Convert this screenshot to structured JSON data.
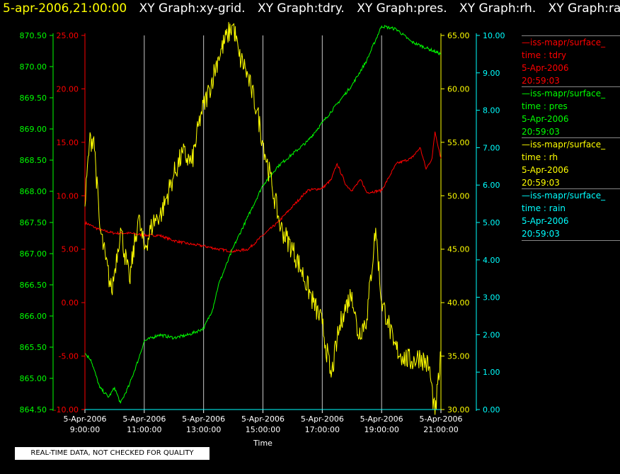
{
  "title": {
    "timestamp": "5-apr-2006,21:00:00",
    "graphs": [
      "XY Graph:xy-grid.",
      "XY Graph:tdry.",
      "XY Graph:pres.",
      "XY Graph:rh.",
      "XY Graph:rain."
    ]
  },
  "colors": {
    "timestamp": "#ffff00",
    "tdry": "#ff0000",
    "pres": "#00ff00",
    "rh": "#ffff00",
    "rain": "#00ffff",
    "grid": "#c8c8c8"
  },
  "legend": [
    {
      "source": "—iss-mapr/surface_",
      "var": "time : tdry",
      "date": "5-Apr-2006",
      "time": "20:59:03",
      "color": "#ff0000"
    },
    {
      "source": "—iss-mapr/surface_",
      "var": "time : pres",
      "date": "5-Apr-2006",
      "time": "20:59:03",
      "color": "#00ff00"
    },
    {
      "source": "—iss-mapr/surface_",
      "var": "time : rh",
      "date": "5-Apr-2006",
      "time": "20:59:03",
      "color": "#ffff00"
    },
    {
      "source": "—iss-mapr/surface_",
      "var": "time : rain",
      "date": "5-Apr-2006",
      "time": "20:59:03",
      "color": "#00ffff"
    }
  ],
  "disclaimer": "REAL-TIME DATA, NOT CHECKED FOR QUALITY",
  "chart_data": {
    "type": "line",
    "xlabel": "Time",
    "x_ticks": [
      {
        "date": "5-Apr-2006",
        "time": "9:00:00",
        "h": 9
      },
      {
        "date": "5-Apr-2006",
        "time": "11:00:00",
        "h": 11
      },
      {
        "date": "5-Apr-2006",
        "time": "13:00:00",
        "h": 13
      },
      {
        "date": "5-Apr-2006",
        "time": "15:00:00",
        "h": 15
      },
      {
        "date": "5-Apr-2006",
        "time": "17:00:00",
        "h": 17
      },
      {
        "date": "5-Apr-2006",
        "time": "19:00:00",
        "h": 19
      },
      {
        "date": "5-Apr-2006",
        "time": "21:00:00",
        "h": 21
      }
    ],
    "xlim": [
      9,
      21
    ],
    "grid": true,
    "axes": {
      "pres": {
        "ylim": [
          864.5,
          870.5
        ],
        "ticks": [
          "864.50",
          "865.00",
          "865.50",
          "866.00",
          "866.50",
          "867.00",
          "867.50",
          "868.00",
          "868.50",
          "869.00",
          "869.50",
          "870.00",
          "870.50"
        ]
      },
      "tdry": {
        "ylim": [
          -10,
          25
        ],
        "ticks": [
          "-10.00",
          "-5.00",
          "0.00",
          "5.00",
          "10.00",
          "15.00",
          "20.00",
          "25.00"
        ]
      },
      "rh": {
        "ylim": [
          30,
          65
        ],
        "ticks": [
          "30.00",
          "35.00",
          "40.00",
          "45.00",
          "50.00",
          "55.00",
          "60.00",
          "65.00"
        ]
      },
      "rain": {
        "ylim": [
          0,
          10
        ],
        "ticks": [
          "0.00",
          "1.00",
          "2.00",
          "3.00",
          "4.00",
          "5.00",
          "6.00",
          "7.00",
          "8.00",
          "9.00",
          "10.00"
        ]
      }
    },
    "series": [
      {
        "name": "time : tdry",
        "axis": "tdry",
        "x": [
          9.0,
          9.5,
          10.0,
          10.5,
          11.0,
          11.5,
          12.0,
          12.5,
          13.0,
          13.5,
          14.0,
          14.5,
          15.0,
          15.5,
          16.0,
          16.5,
          17.0,
          17.3,
          17.5,
          17.8,
          18.0,
          18.3,
          18.5,
          19.0,
          19.3,
          19.5,
          20.0,
          20.3,
          20.5,
          20.7,
          20.8,
          21.0
        ],
        "values": [
          7.5,
          6.8,
          6.5,
          6.5,
          6.3,
          6.3,
          5.8,
          5.5,
          5.3,
          5.0,
          4.8,
          5.0,
          6.3,
          7.5,
          9.0,
          10.5,
          10.7,
          11.5,
          13.0,
          11.0,
          10.5,
          11.5,
          10.3,
          10.5,
          12.0,
          13.0,
          13.5,
          14.5,
          12.5,
          13.5,
          16.0,
          13.5
        ]
      },
      {
        "name": "time : pres",
        "axis": "pres",
        "x": [
          9.0,
          9.2,
          9.5,
          9.8,
          10.0,
          10.2,
          10.5,
          10.8,
          11.0,
          11.5,
          12.0,
          12.5,
          13.0,
          13.3,
          13.5,
          14.0,
          14.5,
          15.0,
          15.5,
          16.0,
          16.5,
          17.0,
          17.5,
          18.0,
          18.5,
          19.0,
          19.5,
          20.0,
          20.5,
          21.0
        ],
        "values": [
          865.4,
          865.3,
          864.85,
          864.7,
          864.85,
          864.6,
          864.9,
          865.3,
          865.6,
          865.7,
          865.65,
          865.7,
          865.8,
          866.1,
          866.5,
          867.1,
          867.6,
          868.1,
          868.4,
          868.6,
          868.8,
          869.1,
          869.4,
          869.7,
          870.1,
          870.65,
          870.6,
          870.4,
          870.3,
          870.2
        ]
      },
      {
        "name": "time : rh",
        "axis": "rh",
        "x": [
          9.0,
          9.15,
          9.3,
          9.5,
          9.7,
          9.9,
          10.2,
          10.5,
          10.8,
          11.0,
          11.3,
          11.6,
          12.0,
          12.3,
          12.6,
          12.9,
          13.2,
          13.5,
          13.8,
          14.0,
          14.2,
          14.4,
          14.6,
          14.8,
          15.0,
          15.3,
          15.6,
          16.0,
          16.3,
          16.7,
          17.0,
          17.3,
          17.5,
          17.7,
          18.0,
          18.2,
          18.5,
          18.8,
          19.0,
          19.2,
          19.4,
          19.7,
          20.0,
          20.3,
          20.6,
          20.8,
          21.0
        ],
        "values": [
          49.0,
          55.0,
          55.5,
          47.0,
          44.0,
          41.0,
          47.0,
          42.0,
          48.0,
          45.0,
          47.5,
          48.5,
          52.0,
          54.0,
          53.0,
          57.5,
          60.0,
          63.0,
          65.0,
          66.0,
          63.0,
          62.0,
          60.0,
          58.0,
          55.0,
          51.0,
          47.0,
          45.0,
          43.0,
          40.0,
          38.0,
          33.0,
          36.5,
          39.0,
          41.0,
          37.0,
          38.5,
          47.0,
          40.0,
          38.5,
          36.0,
          35.0,
          34.5,
          35.0,
          34.0,
          29.5,
          35.0
        ]
      },
      {
        "name": "time : rain",
        "axis": "rain",
        "x": [
          9.0,
          21.0
        ],
        "values": [
          0.0,
          0.0
        ]
      }
    ]
  }
}
